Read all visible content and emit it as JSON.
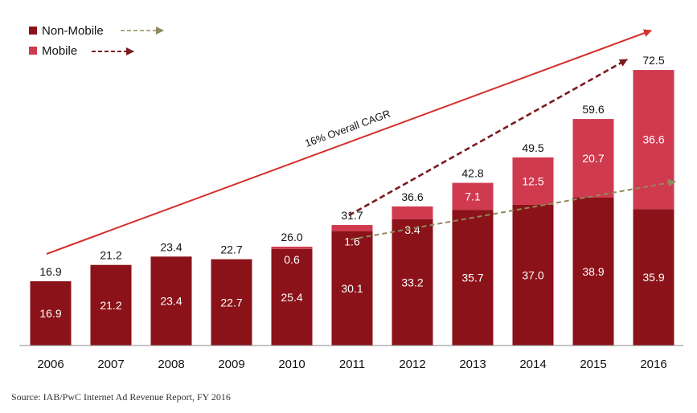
{
  "chart_data": {
    "type": "bar",
    "stacked": true,
    "categories": [
      "2006",
      "2007",
      "2008",
      "2009",
      "2010",
      "2011",
      "2012",
      "2013",
      "2014",
      "2015",
      "2016"
    ],
    "series": [
      {
        "name": "Non-Mobile",
        "color": "#8b1219",
        "values": [
          16.9,
          21.2,
          23.4,
          22.7,
          25.4,
          30.1,
          33.2,
          35.7,
          37.0,
          38.9,
          35.9
        ],
        "labels": [
          "16.9",
          "21.2",
          "23.4",
          "22.7",
          "25.4",
          "30.1",
          "33.2",
          "35.7",
          "37.0",
          "38.9",
          "35.9"
        ]
      },
      {
        "name": "Mobile",
        "color": "#d03a4f",
        "values": [
          0,
          0,
          0,
          0,
          0.6,
          1.6,
          3.4,
          7.1,
          12.5,
          20.7,
          36.6
        ],
        "labels": [
          "",
          "",
          "",
          "",
          "0.6",
          "1.6",
          "3.4",
          "7.1",
          "12.5",
          "20.7",
          "36.6"
        ]
      }
    ],
    "totals": [
      16.9,
      21.2,
      23.4,
      22.7,
      26.0,
      31.7,
      36.6,
      42.8,
      49.5,
      59.6,
      72.5
    ],
    "total_labels": [
      "16.9",
      "21.2",
      "23.4",
      "22.7",
      "26.0",
      "31.7",
      "36.6",
      "42.8",
      "49.5",
      "59.6",
      "72.5"
    ],
    "ylim": [
      0,
      80
    ],
    "grid": false,
    "legend": {
      "position": "top-left",
      "entries": [
        "Non-Mobile",
        "Mobile"
      ]
    },
    "annotations": {
      "cagr_label": "16% Overall CAGR"
    },
    "colors": {
      "overall_trend": "#d4302c",
      "mobile_trend": "#7a1a1f",
      "nonmobile_trend": "#8f8a5c"
    }
  },
  "source": "Source: IAB/PwC Internet Ad Revenue Report, FY 2016"
}
